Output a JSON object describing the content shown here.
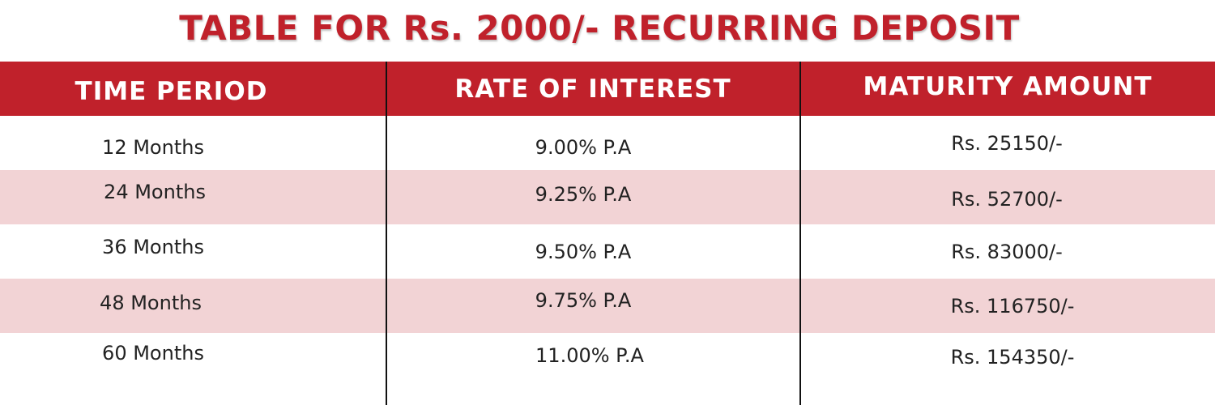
{
  "title": "TABLE FOR Rs. 2000/- RECURRING DEPOSIT",
  "columns": [
    "TIME PERIOD",
    "RATE OF INTEREST",
    "MATURITY AMOUNT"
  ],
  "rows": [
    {
      "period": "12 Months",
      "rate": "9.00% P.A",
      "amount": "Rs. 25150/-"
    },
    {
      "period": "24 Months",
      "rate": "9.25% P.A",
      "amount": "Rs. 52700/-"
    },
    {
      "period": "36 Months",
      "rate": "9.50% P.A",
      "amount": "Rs. 83000/-"
    },
    {
      "period": "48 Months",
      "rate": "9.75% P.A",
      "amount": "Rs. 116750/-"
    },
    {
      "period": "60 Months",
      "rate": "11.00% P.A",
      "amount": "Rs. 154350/-"
    }
  ],
  "colors": {
    "accent": "#c0212b",
    "row_shade": "#f2d3d5",
    "header_text": "#ffffff"
  }
}
